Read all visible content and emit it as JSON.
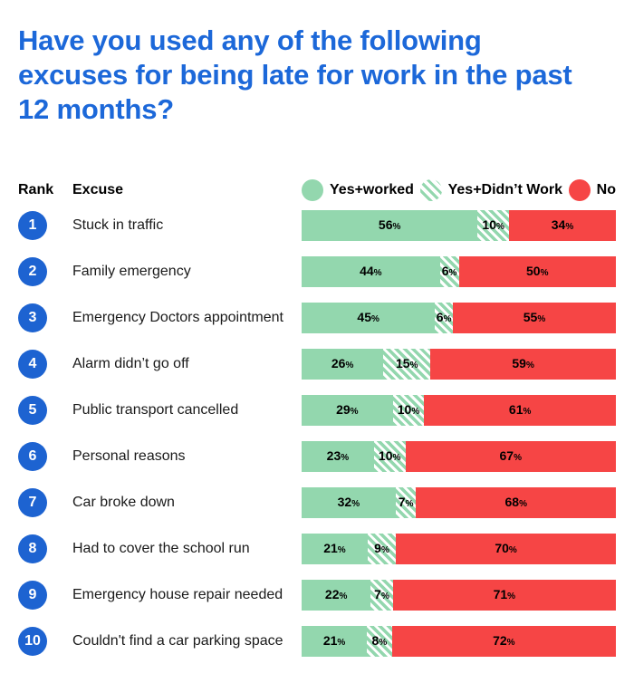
{
  "title": {
    "full": "Have you used any of the following excuses for being late for work in the past 12 months?",
    "lines": [
      "Have you used any of the following",
      "excuses for being late for work in the past",
      "12 months?"
    ]
  },
  "table": {
    "columns": {
      "rank": "Rank",
      "excuse": "Excuse"
    }
  },
  "legend": {
    "items": [
      {
        "label": "Yes+worked",
        "swatch": "green-circle"
      },
      {
        "label": "Yes+Didn’t Work",
        "swatch": "green-striped-circle"
      },
      {
        "label": "No",
        "swatch": "red-circle"
      }
    ]
  },
  "unit": "%",
  "colors": {
    "title_blue": "#1c68d9",
    "rank_blue": "#1d63d1",
    "green": "#93d7ae",
    "red": "#f64545",
    "text_dark": "#111111"
  },
  "rows": [
    {
      "rank": 1,
      "excuse": "Stuck in traffic",
      "yes_worked": 56,
      "yes_didnt_work": 10,
      "no": 34
    },
    {
      "rank": 2,
      "excuse": "Family emergency",
      "yes_worked": 44,
      "yes_didnt_work": 6,
      "no": 50
    },
    {
      "rank": 3,
      "excuse": "Emergency Doctors appointment",
      "yes_worked": 45,
      "yes_didnt_work": 6,
      "no": 55
    },
    {
      "rank": 4,
      "excuse": "Alarm didn’t go off",
      "yes_worked": 26,
      "yes_didnt_work": 15,
      "no": 59
    },
    {
      "rank": 5,
      "excuse": "Public transport cancelled",
      "yes_worked": 29,
      "yes_didnt_work": 10,
      "no": 61
    },
    {
      "rank": 6,
      "excuse": "Personal reasons",
      "yes_worked": 23,
      "yes_didnt_work": 10,
      "no": 67
    },
    {
      "rank": 7,
      "excuse": "Car broke down",
      "yes_worked": 32,
      "yes_didnt_work": 7,
      "no": 68
    },
    {
      "rank": 8,
      "excuse": "Had to cover the school run",
      "yes_worked": 21,
      "yes_didnt_work": 9,
      "no": 70
    },
    {
      "rank": 9,
      "excuse": "Emergency house repair needed",
      "yes_worked": 22,
      "yes_didnt_work": 7,
      "no": 71
    },
    {
      "rank": 10,
      "excuse": "Couldn't find a car parking space",
      "yes_worked": 21,
      "yes_didnt_work": 8,
      "no": 72
    }
  ],
  "chart_data": {
    "type": "bar",
    "orientation": "horizontal-stacked",
    "normalized_to_full_width": true,
    "title": "Have you used any of the following excuses for being late for work in the past 12 months?",
    "categories": [
      "Stuck in traffic",
      "Family emergency",
      "Emergency Doctors appointment",
      "Alarm didn’t go off",
      "Public transport cancelled",
      "Personal reasons",
      "Car broke down",
      "Had to cover the school run",
      "Emergency house repair needed",
      "Couldn't find a car parking space"
    ],
    "ranks": [
      1,
      2,
      3,
      4,
      5,
      6,
      7,
      8,
      9,
      10
    ],
    "series": [
      {
        "name": "Yes+worked",
        "color": "#93d7ae",
        "pattern": "solid",
        "values": [
          56,
          44,
          45,
          26,
          29,
          23,
          32,
          21,
          22,
          21
        ]
      },
      {
        "name": "Yes+Didn’t Work",
        "color": "#93d7ae",
        "pattern": "diagonal-stripes",
        "values": [
          10,
          6,
          6,
          15,
          10,
          10,
          7,
          9,
          7,
          8
        ]
      },
      {
        "name": "No",
        "color": "#f64545",
        "pattern": "solid",
        "values": [
          34,
          50,
          55,
          59,
          61,
          67,
          68,
          70,
          71,
          72
        ]
      }
    ],
    "unit": "%",
    "legend_position": "top-right",
    "value_labels": "inside-segments",
    "grid": false
  }
}
